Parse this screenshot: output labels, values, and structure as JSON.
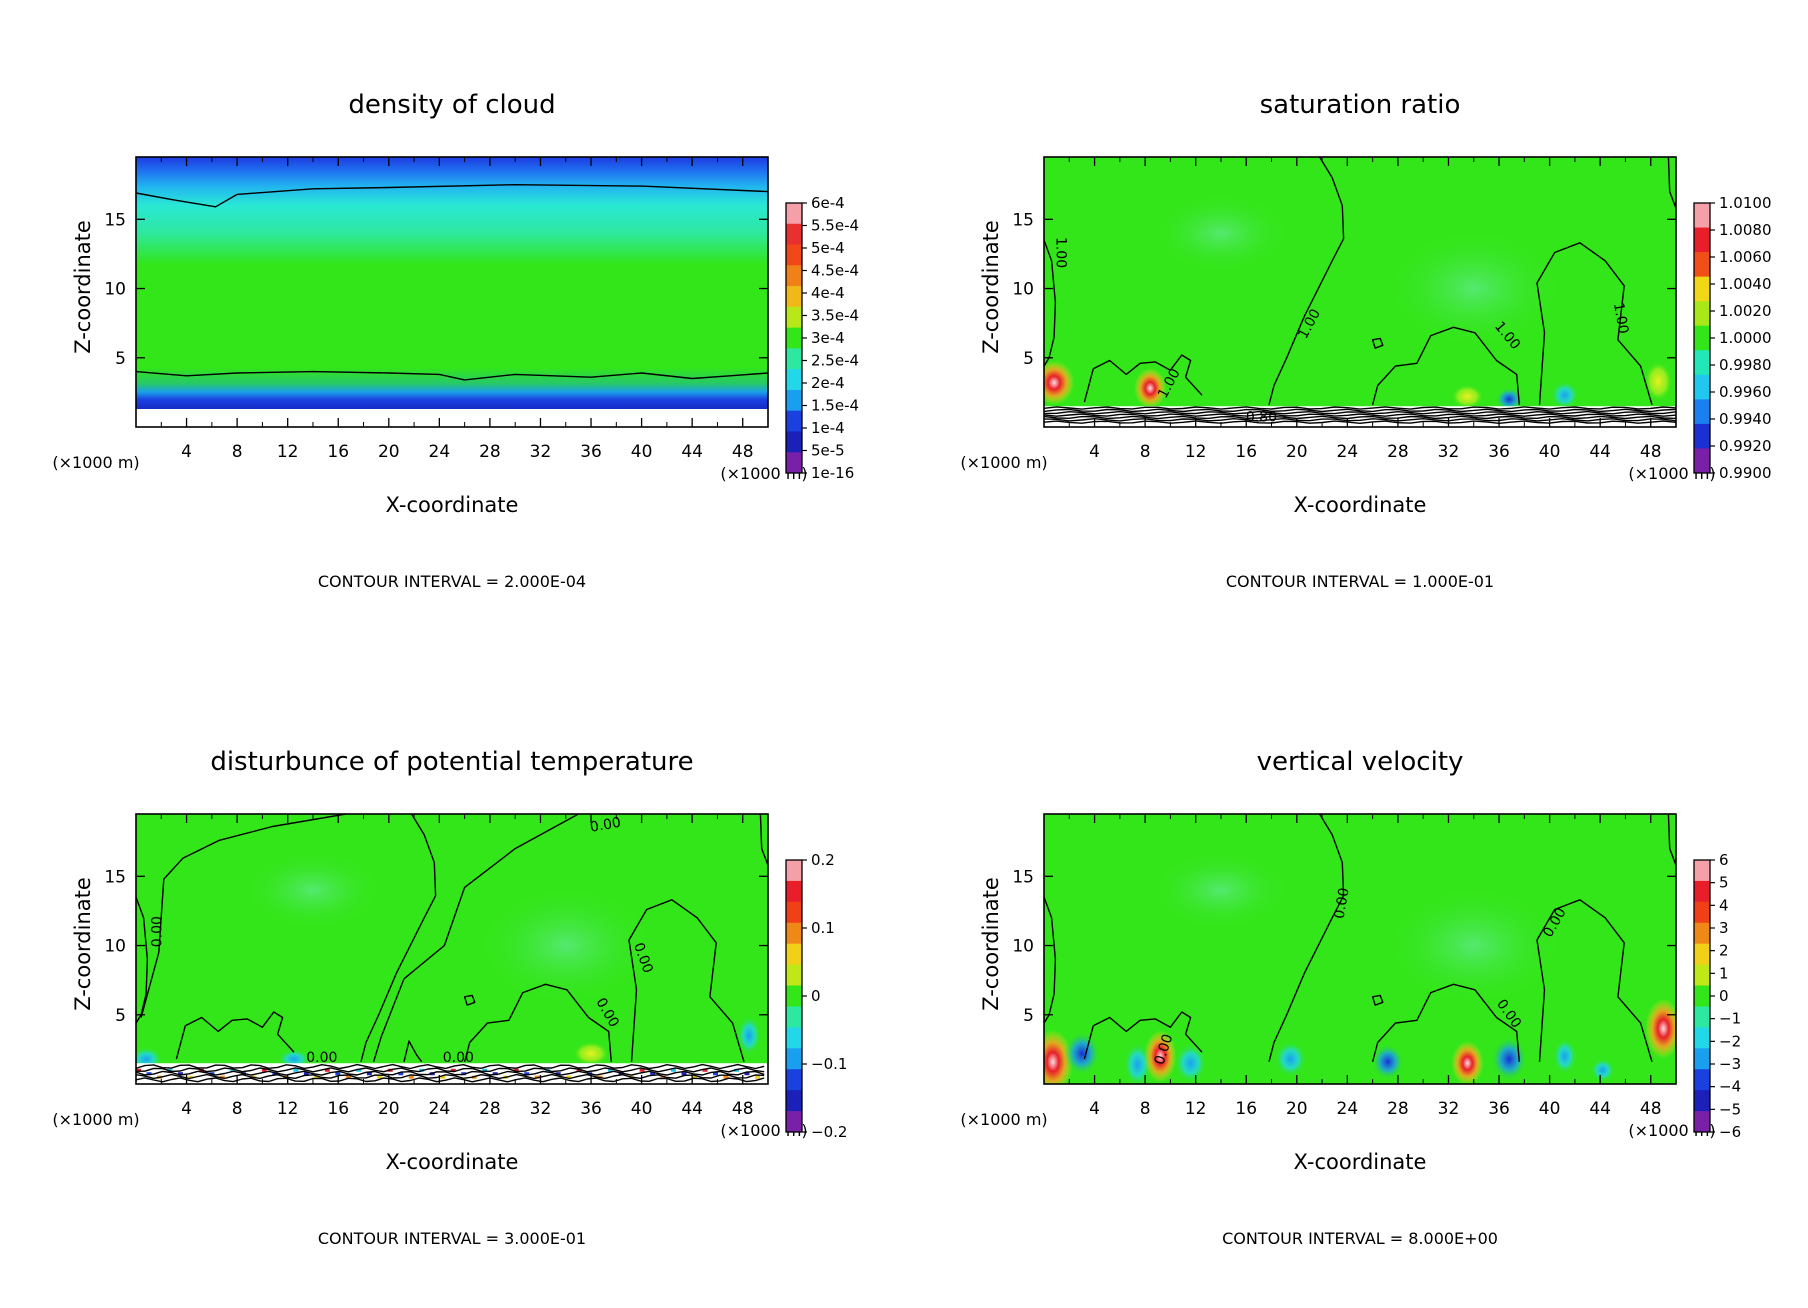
{
  "chart_data": [
    {
      "type": "heatmap",
      "title": "density of cloud",
      "xlabel": "X-coordinate",
      "ylabel": "Z-coordinate",
      "x_unit": "(×1000 m)",
      "z_unit": "(×1000 m)",
      "xlim": [
        0,
        50
      ],
      "ylim": [
        0,
        19.5
      ],
      "xticks": [
        "4",
        "8",
        "12",
        "16",
        "20",
        "24",
        "28",
        "32",
        "36",
        "40",
        "44",
        "48"
      ],
      "yticks": [
        "5",
        "10",
        "15"
      ],
      "colorbar": [
        "6e-4",
        "5.5e-4",
        "5e-4",
        "4.5e-4",
        "4e-4",
        "3.5e-4",
        "3e-4",
        "2.5e-4",
        "2e-4",
        "1.5e-4",
        "1e-4",
        "5e-5",
        "1e-16"
      ],
      "footer": "CONTOUR INTERVAL = 2.000E-04",
      "field": "cloud"
    },
    {
      "type": "heatmap",
      "title": "saturation ratio",
      "xlabel": "X-coordinate",
      "ylabel": "Z-coordinate",
      "x_unit": "(×1000 m)",
      "z_unit": "(×1000 m)",
      "xlim": [
        0,
        50
      ],
      "ylim": [
        0,
        19.5
      ],
      "xticks": [
        "4",
        "8",
        "12",
        "16",
        "20",
        "24",
        "28",
        "32",
        "36",
        "40",
        "44",
        "48"
      ],
      "yticks": [
        "5",
        "10",
        "15"
      ],
      "colorbar": [
        "1.0100",
        "1.0080",
        "1.0060",
        "1.0040",
        "1.0020",
        "1.0000",
        "0.9980",
        "0.9960",
        "0.9940",
        "0.9920",
        "0.9900"
      ],
      "footer": "CONTOUR INTERVAL = 1.000E-01",
      "contour_labels": [
        "1.00",
        "1.00",
        "1.00",
        "1.00",
        "1.00",
        "0.80"
      ],
      "field": "sat"
    },
    {
      "type": "heatmap",
      "title": "disturbunce of potential temperature",
      "xlabel": "X-coordinate",
      "ylabel": "Z-coordinate",
      "x_unit": "(×1000 m)",
      "z_unit": "(×1000 m)",
      "xlim": [
        0,
        50
      ],
      "ylim": [
        0,
        19.5
      ],
      "xticks": [
        "4",
        "8",
        "12",
        "16",
        "20",
        "24",
        "28",
        "32",
        "36",
        "40",
        "44",
        "48"
      ],
      "yticks": [
        "5",
        "10",
        "15"
      ],
      "colorbar": [
        "0.2",
        "0.1",
        "0",
        "−0.1",
        "−0.2"
      ],
      "footer": "CONTOUR INTERVAL = 3.000E-01",
      "contour_labels": [
        "0.00",
        "0.00",
        "0.00",
        "0.00",
        "0.00",
        "0.00"
      ],
      "field": "theta"
    },
    {
      "type": "heatmap",
      "title": "vertical velocity",
      "xlabel": "X-coordinate",
      "ylabel": "Z-coordinate",
      "x_unit": "(×1000 m)",
      "z_unit": "(×1000 m)",
      "xlim": [
        0,
        50
      ],
      "ylim": [
        0,
        19.5
      ],
      "xticks": [
        "4",
        "8",
        "12",
        "16",
        "20",
        "24",
        "28",
        "32",
        "36",
        "40",
        "44",
        "48"
      ],
      "yticks": [
        "5",
        "10",
        "15"
      ],
      "colorbar": [
        "6",
        "5",
        "4",
        "3",
        "2",
        "1",
        "0",
        "−1",
        "−2",
        "−3",
        "−4",
        "−5",
        "−6"
      ],
      "footer": "CONTOUR INTERVAL = 8.000E+00",
      "contour_labels": [
        "0.00",
        "0.00",
        "0.00",
        "0.00"
      ],
      "field": "w"
    }
  ],
  "colors": {
    "field_green": "#33e619",
    "cloud_upper": "#29e8d4",
    "deep_blue": "#1a2fd6",
    "purple": "#7a1fa8",
    "red": "#e81f2a",
    "pink": "#f4a0a4"
  }
}
